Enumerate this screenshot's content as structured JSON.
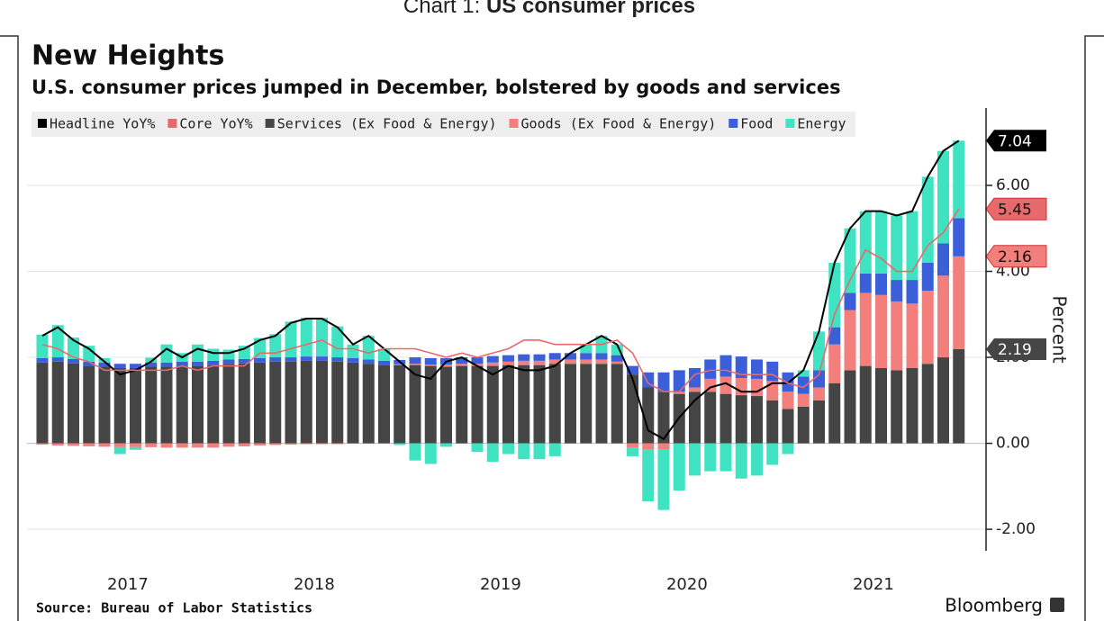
{
  "header": {
    "prefix": "Chart 1:",
    "title": "US consumer prices"
  },
  "chart_data": {
    "type": "bar",
    "title": "New Heights",
    "subtitle": "U.S. consumer prices jumped in December, bolstered by goods and services",
    "y_label": "Percent",
    "source": "Source: Bureau of Labor Statistics",
    "brand": "Bloomberg",
    "categories": [
      null,
      null,
      null,
      null,
      null,
      null,
      "2017",
      null,
      null,
      null,
      null,
      null,
      null,
      null,
      null,
      null,
      null,
      null,
      "2018",
      null,
      null,
      null,
      null,
      null,
      null,
      null,
      null,
      null,
      null,
      null,
      "2019",
      null,
      null,
      null,
      null,
      null,
      null,
      null,
      null,
      null,
      null,
      null,
      "2020",
      null,
      null,
      null,
      null,
      null,
      null,
      null,
      null,
      null,
      null,
      null,
      "2021",
      null,
      null,
      null,
      null,
      null
    ],
    "ylim": [
      -2.5,
      7.8
    ],
    "yticks": [
      {
        "value": -2,
        "label": "-2.00"
      },
      {
        "value": 0,
        "label": "0.00"
      },
      {
        "value": 2,
        "label": "2.00"
      },
      {
        "value": 4,
        "label": "4.00"
      },
      {
        "value": 6,
        "label": "6.00"
      }
    ],
    "legend": "top-left",
    "series": [
      {
        "name": "Headline YoY%",
        "type": "line",
        "color": "#000000",
        "label_last": true,
        "values": [
          2.5,
          2.7,
          2.4,
          2.2,
          1.9,
          1.6,
          1.7,
          1.9,
          2.2,
          2.0,
          2.2,
          2.1,
          2.1,
          2.2,
          2.4,
          2.5,
          2.8,
          2.9,
          2.9,
          2.7,
          2.3,
          2.5,
          2.2,
          1.9,
          1.6,
          1.5,
          1.9,
          2.0,
          1.8,
          1.6,
          1.8,
          1.7,
          1.7,
          1.8,
          2.1,
          2.3,
          2.5,
          2.3,
          1.5,
          0.3,
          0.1,
          0.6,
          1.0,
          1.3,
          1.4,
          1.2,
          1.2,
          1.4,
          1.4,
          1.7,
          2.6,
          4.2,
          5.0,
          5.4,
          5.4,
          5.3,
          5.4,
          6.2,
          6.8,
          7.04
        ]
      },
      {
        "name": "Core YoY%",
        "type": "line",
        "color": "#e8696b",
        "label_last": true,
        "values": [
          2.3,
          2.2,
          2.0,
          1.9,
          1.7,
          1.7,
          1.7,
          1.7,
          1.7,
          1.8,
          1.7,
          1.8,
          1.8,
          1.8,
          2.1,
          2.1,
          2.2,
          2.3,
          2.4,
          2.2,
          2.2,
          2.1,
          2.2,
          2.2,
          2.2,
          2.1,
          2.0,
          2.1,
          2.0,
          2.1,
          2.2,
          2.4,
          2.4,
          2.3,
          2.3,
          2.3,
          2.3,
          2.4,
          2.1,
          1.4,
          1.2,
          1.2,
          1.6,
          1.7,
          1.7,
          1.6,
          1.6,
          1.6,
          1.4,
          1.3,
          1.6,
          3.0,
          3.8,
          4.5,
          4.3,
          4.0,
          4.0,
          4.6,
          4.9,
          5.45
        ]
      },
      {
        "name": "Services (Ex Food & Energy)",
        "type": "bar",
        "color": "#454545",
        "label_last": true,
        "values": [
          1.88,
          1.9,
          1.86,
          1.8,
          1.78,
          1.75,
          1.75,
          1.78,
          1.78,
          1.8,
          1.8,
          1.82,
          1.85,
          1.86,
          1.88,
          1.9,
          1.9,
          1.92,
          1.92,
          1.9,
          1.88,
          1.85,
          1.82,
          1.82,
          1.82,
          1.8,
          1.78,
          1.8,
          1.8,
          1.8,
          1.82,
          1.82,
          1.82,
          1.85,
          1.85,
          1.85,
          1.85,
          1.85,
          1.6,
          1.3,
          1.2,
          1.15,
          1.2,
          1.2,
          1.15,
          1.12,
          1.1,
          1.0,
          0.8,
          0.85,
          1.0,
          1.4,
          1.7,
          1.8,
          1.75,
          1.7,
          1.75,
          1.85,
          2.0,
          2.19
        ]
      },
      {
        "name": "Goods (Ex Food & Energy)",
        "type": "bar",
        "color": "#f27f7c",
        "label_last": true,
        "values": [
          -0.03,
          -0.05,
          -0.06,
          -0.07,
          -0.08,
          -0.09,
          -0.09,
          -0.09,
          -0.1,
          -0.1,
          -0.1,
          -0.1,
          -0.08,
          -0.07,
          -0.05,
          -0.04,
          -0.03,
          -0.02,
          -0.02,
          -0.02,
          0,
          0,
          0,
          0.02,
          0.03,
          0.03,
          0.05,
          0.05,
          0.05,
          0.08,
          0.08,
          0.1,
          0.1,
          0.1,
          0.1,
          0.1,
          0.1,
          0.05,
          -0.1,
          -0.15,
          -0.15,
          0.05,
          0.1,
          0.3,
          0.4,
          0.4,
          0.4,
          0.45,
          0.4,
          0.3,
          0.3,
          0.9,
          1.4,
          1.7,
          1.7,
          1.6,
          1.5,
          1.7,
          1.9,
          2.16
        ]
      },
      {
        "name": "Food",
        "type": "bar",
        "color": "#3a5fd9",
        "label_last": false,
        "values": [
          0.1,
          0.1,
          0.1,
          0.1,
          0.1,
          0.1,
          0.1,
          0.1,
          0.1,
          0.1,
          0.1,
          0.1,
          0.1,
          0.1,
          0.1,
          0.1,
          0.1,
          0.1,
          0.1,
          0.1,
          0.1,
          0.1,
          0.1,
          0.1,
          0.15,
          0.15,
          0.15,
          0.15,
          0.15,
          0.15,
          0.15,
          0.15,
          0.15,
          0.15,
          0.15,
          0.15,
          0.15,
          0.15,
          0.2,
          0.35,
          0.45,
          0.5,
          0.45,
          0.45,
          0.5,
          0.5,
          0.45,
          0.45,
          0.45,
          0.4,
          0.4,
          0.4,
          0.4,
          0.45,
          0.5,
          0.5,
          0.55,
          0.65,
          0.75,
          0.89
        ]
      },
      {
        "name": "Energy",
        "type": "bar",
        "color": "#3fe3c2",
        "label_last": false,
        "values": [
          0.55,
          0.75,
          0.5,
          0.37,
          0.1,
          -0.16,
          -0.06,
          0.11,
          0.42,
          0.2,
          0.4,
          0.28,
          0.23,
          0.31,
          0.47,
          0.54,
          0.83,
          0.9,
          0.9,
          0.72,
          0.32,
          0.55,
          0.28,
          -0.04,
          -0.4,
          -0.48,
          -0.08,
          0,
          -0.2,
          -0.43,
          -0.25,
          -0.37,
          -0.37,
          -0.3,
          0,
          0.2,
          0.4,
          0.25,
          -0.2,
          -1.2,
          -1.4,
          -1.1,
          -0.75,
          -0.65,
          -0.65,
          -0.82,
          -0.75,
          -0.5,
          -0.25,
          0.15,
          0.9,
          1.5,
          1.5,
          1.45,
          1.45,
          1.5,
          1.6,
          2.0,
          2.15,
          1.8
        ]
      }
    ]
  }
}
